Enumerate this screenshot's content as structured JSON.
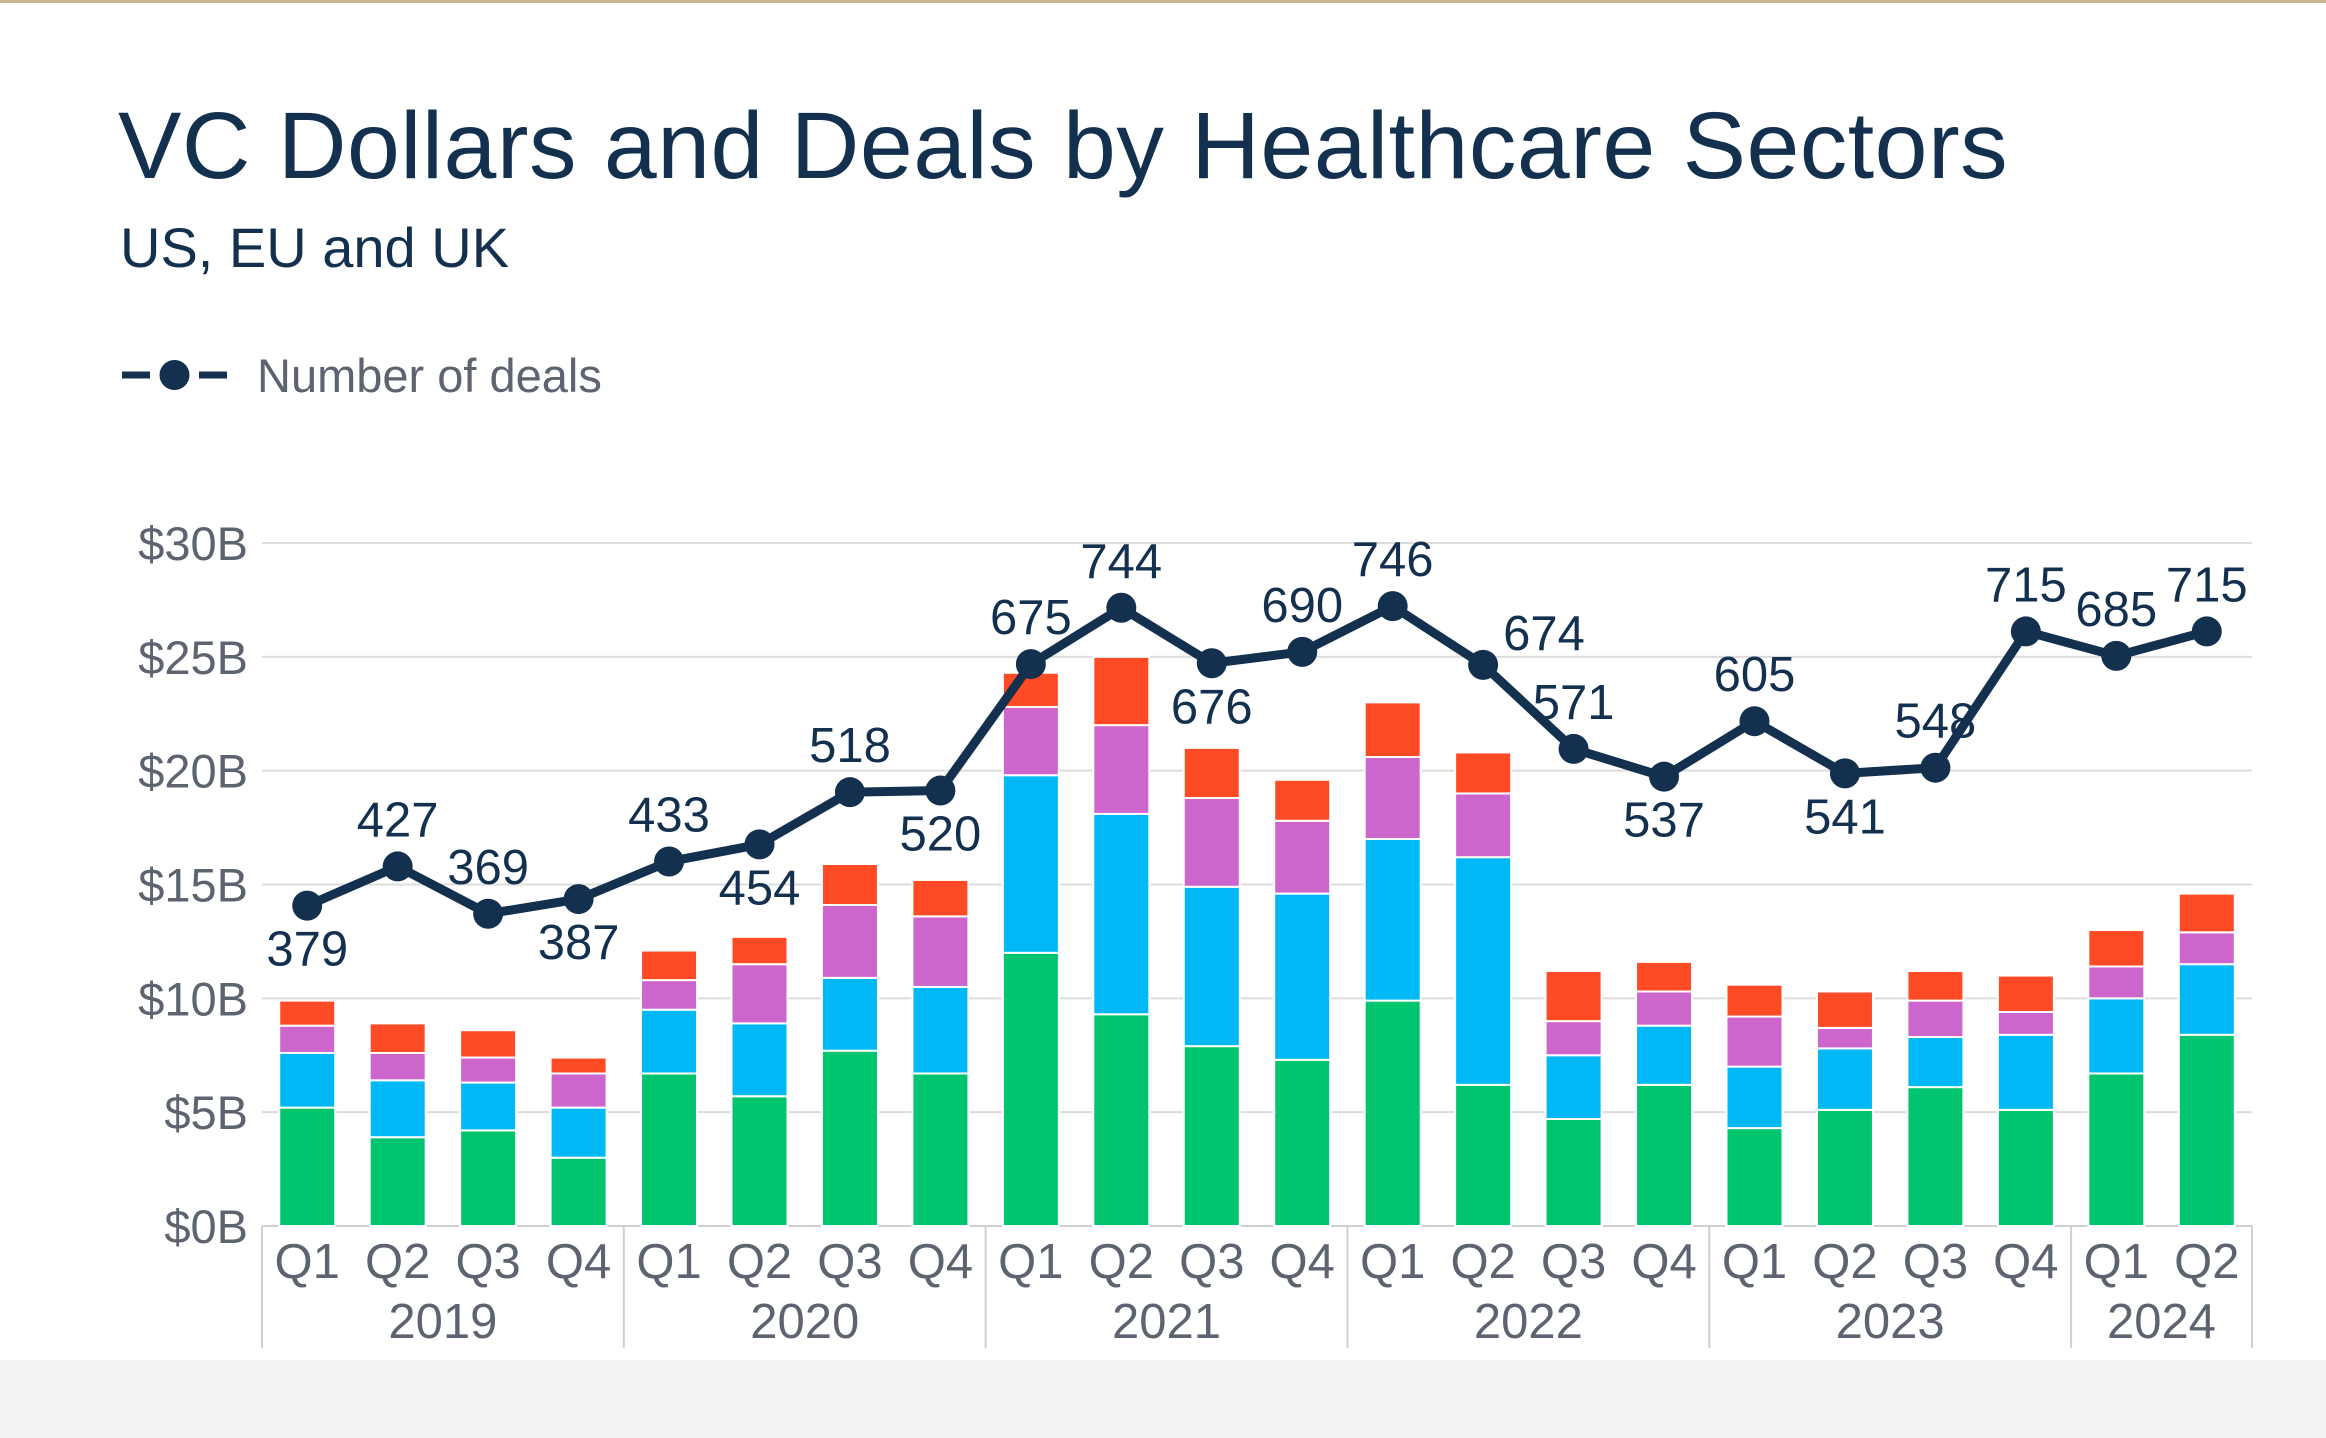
{
  "chart_data": {
    "type": "bar",
    "title": "VC Dollars and Deals by Healthcare Sectors",
    "subtitle": "US, EU and UK",
    "legend": {
      "entries": [
        "Number of deals"
      ],
      "placement": "top-left"
    },
    "years": [
      "2019",
      "2020",
      "2021",
      "2022",
      "2023",
      "2024"
    ],
    "quarters_per_year": [
      4,
      4,
      4,
      4,
      4,
      2
    ],
    "categories": [
      "Q1",
      "Q2",
      "Q3",
      "Q4",
      "Q1",
      "Q2",
      "Q3",
      "Q4",
      "Q1",
      "Q2",
      "Q3",
      "Q4",
      "Q1",
      "Q2",
      "Q3",
      "Q4",
      "Q1",
      "Q2",
      "Q3",
      "Q4",
      "Q1",
      "Q2"
    ],
    "y_ticks": [
      "$0B",
      "$5B",
      "$10B",
      "$15B",
      "$20B",
      "$25B",
      "$30B"
    ],
    "ylim": [
      0,
      30
    ],
    "grid": true,
    "series": [
      {
        "color": "#00c46e",
        "values": [
          5.2,
          3.9,
          4.2,
          3.0,
          6.7,
          5.7,
          7.7,
          6.7,
          12.0,
          9.3,
          7.9,
          7.3,
          9.9,
          6.2,
          4.7,
          6.2,
          4.3,
          5.1,
          6.1,
          5.1,
          6.7,
          8.4
        ]
      },
      {
        "color": "#00b8f5",
        "values": [
          2.4,
          2.5,
          2.1,
          2.2,
          2.8,
          3.2,
          3.2,
          3.8,
          7.8,
          8.8,
          7.0,
          7.3,
          7.1,
          10.0,
          2.8,
          2.6,
          2.7,
          2.7,
          2.2,
          3.3,
          3.3,
          3.1
        ]
      },
      {
        "color": "#cc66cc",
        "values": [
          1.2,
          1.2,
          1.1,
          1.5,
          1.3,
          2.6,
          3.2,
          3.1,
          3.0,
          3.9,
          3.9,
          3.2,
          3.6,
          2.8,
          1.5,
          1.5,
          2.2,
          0.9,
          1.6,
          1.0,
          1.4,
          1.4
        ]
      },
      {
        "color": "#ff4a26",
        "values": [
          1.1,
          1.3,
          1.2,
          0.7,
          1.3,
          1.2,
          1.8,
          1.6,
          1.5,
          3.0,
          2.2,
          1.8,
          2.4,
          1.8,
          2.2,
          1.3,
          1.4,
          1.6,
          1.3,
          1.6,
          1.6,
          1.7
        ]
      },
      {
        "name": "Number of deals",
        "type": "line",
        "color": "#13304f",
        "values": [
          379,
          427,
          369,
          387,
          433,
          454,
          518,
          520,
          675,
          744,
          676,
          690,
          746,
          674,
          571,
          537,
          605,
          541,
          548,
          715,
          685,
          715
        ]
      }
    ],
    "deal_labels": [
      "379",
      "427",
      "369",
      "387",
      "433",
      "454",
      "518",
      "520",
      "675",
      "744",
      "676",
      "690",
      "746",
      "674",
      "571",
      "537",
      "605",
      "541",
      "548",
      "715",
      "685",
      "715"
    ],
    "deal_label_side": [
      "below",
      "above",
      "above",
      "below",
      "above",
      "below",
      "above",
      "below",
      "above",
      "above",
      "below",
      "above",
      "above",
      "right",
      "above",
      "below",
      "above",
      "below",
      "above",
      "above",
      "above",
      "above"
    ],
    "deal_scale": {
      "pixels_per_deal_note": "line scale relative to bar axis",
      "k": 0.03584,
      "c": 0.49
    }
  }
}
